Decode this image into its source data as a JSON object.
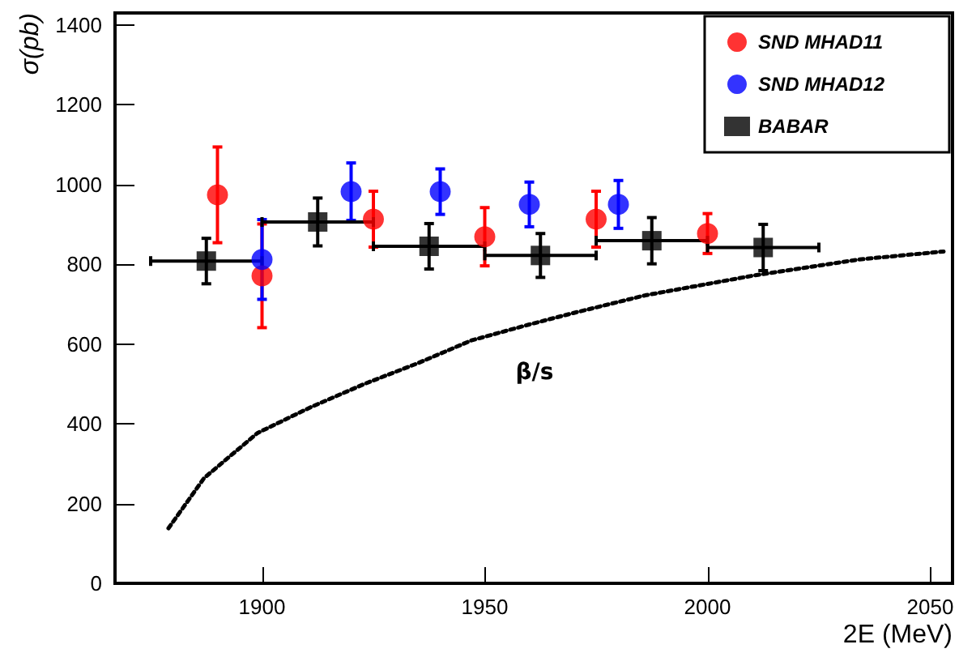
{
  "chart_data": {
    "type": "scatter",
    "xlabel": "2E (MeV)",
    "ylabel": "σ(pb)",
    "xlim": [
      1867,
      2055
    ],
    "xticks": [
      1900,
      1950,
      2000,
      2050
    ],
    "ylim": [
      0,
      1430
    ],
    "yticks": [
      0,
      200,
      400,
      600,
      800,
      1000,
      1200,
      1400
    ],
    "grid": false,
    "legend": "top right",
    "series": [
      {
        "name": "SND MHAD11",
        "marker": "circle",
        "color": "#ff0000",
        "x": [
          1890,
          1900,
          1925,
          1950,
          1975,
          2000
        ],
        "values": [
          974,
          771,
          913,
          869,
          913,
          877
        ],
        "errors": [
          120,
          130,
          70,
          73,
          70,
          50
        ]
      },
      {
        "name": "SND MHAD12",
        "marker": "circle",
        "color": "#0000ff",
        "x": [
          1900,
          1920,
          1940,
          1960,
          1980
        ],
        "values": [
          812,
          982,
          982,
          950,
          950
        ],
        "errors": [
          100,
          72,
          57,
          56,
          60
        ]
      },
      {
        "name": "BABAR",
        "marker": "square",
        "color": "#000000",
        "x": [
          1887.5,
          1912.5,
          1937.5,
          1962.5,
          1987.5,
          2012.5
        ],
        "values": [
          808,
          906,
          845,
          822,
          859,
          842
        ],
        "errors": [
          57,
          60,
          57,
          55,
          58,
          58
        ],
        "xerrors": [
          12.5,
          12.5,
          12.5,
          12.5,
          12.5,
          12.5
        ]
      },
      {
        "type": "line",
        "marker": "none",
        "line_style": "dotted",
        "color": "#000000",
        "x": [
          1879,
          1887,
          1899,
          1911,
          1923,
          1935,
          1947,
          1960,
          1970,
          1986,
          2010,
          2034,
          2053
        ],
        "values": [
          138,
          264,
          377,
          442,
          500,
          552,
          609,
          649,
          678,
          722,
          771,
          812,
          832
        ]
      }
    ],
    "annotations": [
      "β/s"
    ]
  }
}
